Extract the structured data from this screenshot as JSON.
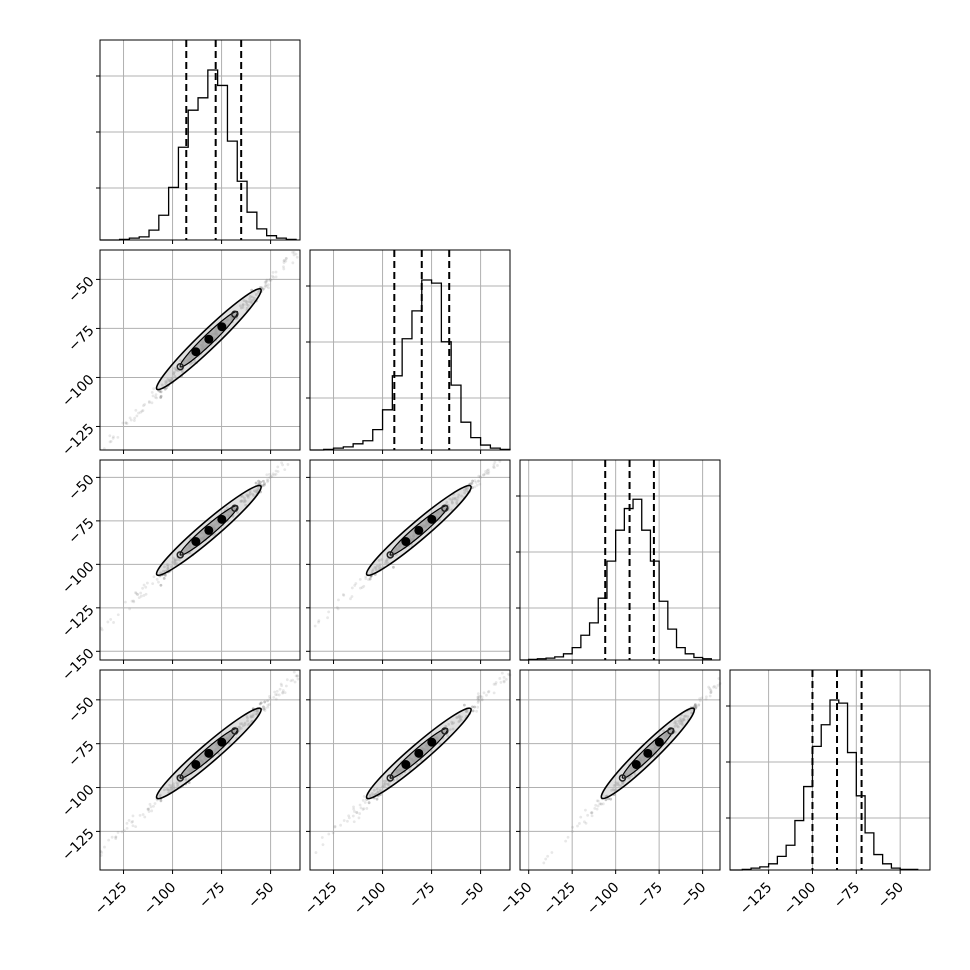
{
  "chart_data": {
    "type": "corner",
    "parameters": 4,
    "quantiles": [
      0.16,
      0.5,
      0.84
    ],
    "panels": [
      {
        "kind": "hist",
        "row": 0,
        "col": 0,
        "xlim": [
          -137,
          -35
        ],
        "bins_x": [
          -127,
          -122,
          -117,
          -112,
          -107,
          -102,
          -97,
          -92,
          -87,
          -82,
          -77,
          -72,
          -67,
          -62,
          -57,
          -52,
          -47,
          -42,
          -37
        ],
        "counts": [
          1,
          3,
          5,
          16,
          40,
          85,
          150,
          210,
          230,
          275,
          250,
          160,
          95,
          45,
          18,
          7,
          3,
          1
        ],
        "ymax": 300,
        "quantile_lines": [
          -93,
          -78,
          -65
        ]
      },
      {
        "kind": "hist",
        "row": 1,
        "col": 1,
        "xlim": [
          -137,
          -35
        ],
        "bins_x": [
          -130,
          -125,
          -120,
          -115,
          -110,
          -105,
          -100,
          -95,
          -90,
          -85,
          -80,
          -75,
          -70,
          -65,
          -60,
          -55,
          -50,
          -45,
          -40,
          -35
        ],
        "counts": [
          1,
          3,
          5,
          10,
          15,
          33,
          65,
          120,
          180,
          225,
          275,
          270,
          175,
          105,
          45,
          20,
          8,
          3,
          1
        ],
        "ymax": 300,
        "quantile_lines": [
          -94,
          -80,
          -66
        ]
      },
      {
        "kind": "hist",
        "row": 2,
        "col": 2,
        "xlim": [
          -155,
          -40
        ],
        "bins_x": [
          -150,
          -145,
          -140,
          -135,
          -130,
          -125,
          -120,
          -115,
          -110,
          -105,
          -100,
          -95,
          -90,
          -85,
          -80,
          -75,
          -70,
          -65,
          -60,
          -55,
          -50,
          -45
        ],
        "counts": [
          1,
          2,
          3,
          5,
          10,
          20,
          40,
          60,
          100,
          160,
          210,
          245,
          260,
          210,
          160,
          95,
          50,
          20,
          10,
          4,
          2
        ],
        "ymax": 300,
        "quantile_lines": [
          -106,
          -92,
          -78
        ]
      },
      {
        "kind": "hist",
        "row": 3,
        "col": 3,
        "xlim": [
          -147,
          -33
        ],
        "bins_x": [
          -140,
          -135,
          -130,
          -125,
          -120,
          -115,
          -110,
          -105,
          -100,
          -95,
          -90,
          -85,
          -80,
          -75,
          -70,
          -65,
          -60,
          -55,
          -50,
          -45,
          -40
        ],
        "counts": [
          1,
          3,
          5,
          10,
          22,
          40,
          80,
          135,
          200,
          235,
          275,
          270,
          190,
          120,
          60,
          25,
          10,
          3,
          1,
          1
        ],
        "ymax": 300,
        "quantile_lines": [
          -100,
          -86,
          -72
        ]
      },
      {
        "kind": "2d",
        "row": 1,
        "col": 0,
        "xlim": [
          -137,
          -35
        ],
        "ylim": [
          -137,
          -35
        ]
      },
      {
        "kind": "2d",
        "row": 2,
        "col": 0,
        "xlim": [
          -137,
          -35
        ],
        "ylim": [
          -155,
          -40
        ]
      },
      {
        "kind": "2d",
        "row": 2,
        "col": 1,
        "xlim": [
          -137,
          -35
        ],
        "ylim": [
          -155,
          -40
        ]
      },
      {
        "kind": "2d",
        "row": 3,
        "col": 0,
        "xlim": [
          -137,
          -35
        ],
        "ylim": [
          -147,
          -33
        ]
      },
      {
        "kind": "2d",
        "row": 3,
        "col": 1,
        "xlim": [
          -137,
          -35
        ],
        "ylim": [
          -147,
          -33
        ]
      },
      {
        "kind": "2d",
        "row": 3,
        "col": 2,
        "xlim": [
          -155,
          -40
        ],
        "ylim": [
          -147,
          -33
        ]
      }
    ],
    "x_tick_labels": {
      "col0": [
        "−125",
        "−100",
        "−75",
        "−50"
      ],
      "col1": [
        "−125",
        "−100",
        "−75",
        "−50"
      ],
      "col2": [
        "−150",
        "−125",
        "−100",
        "−75",
        "−50"
      ],
      "col3": [
        "−125",
        "−100",
        "−75",
        "−50"
      ]
    },
    "y_tick_labels": {
      "row1": [
        "−50",
        "−75",
        "−100",
        "−125"
      ],
      "row2": [
        "−50",
        "−75",
        "−100",
        "−125",
        "−150"
      ],
      "row3": [
        "−50",
        "−75",
        "−100",
        "−125"
      ]
    },
    "x_tick_values": {
      "col0": [
        -125,
        -100,
        -75,
        -50
      ],
      "col1": [
        -125,
        -100,
        -75,
        -50
      ],
      "col2": [
        -150,
        -125,
        -100,
        -75,
        -50
      ],
      "col3": [
        -125,
        -100,
        -75,
        -50
      ]
    },
    "y_tick_values": {
      "row1": [
        -50,
        -75,
        -100,
        -125
      ],
      "row2": [
        -50,
        -75,
        -100,
        -125,
        -150
      ],
      "row3": [
        -50,
        -75,
        -100,
        -125
      ]
    },
    "grid": true,
    "colors": {
      "line": "#000000",
      "grid": "#b0b0b0",
      "points": "#808080",
      "contour_fill": "#c8c8c8"
    }
  }
}
